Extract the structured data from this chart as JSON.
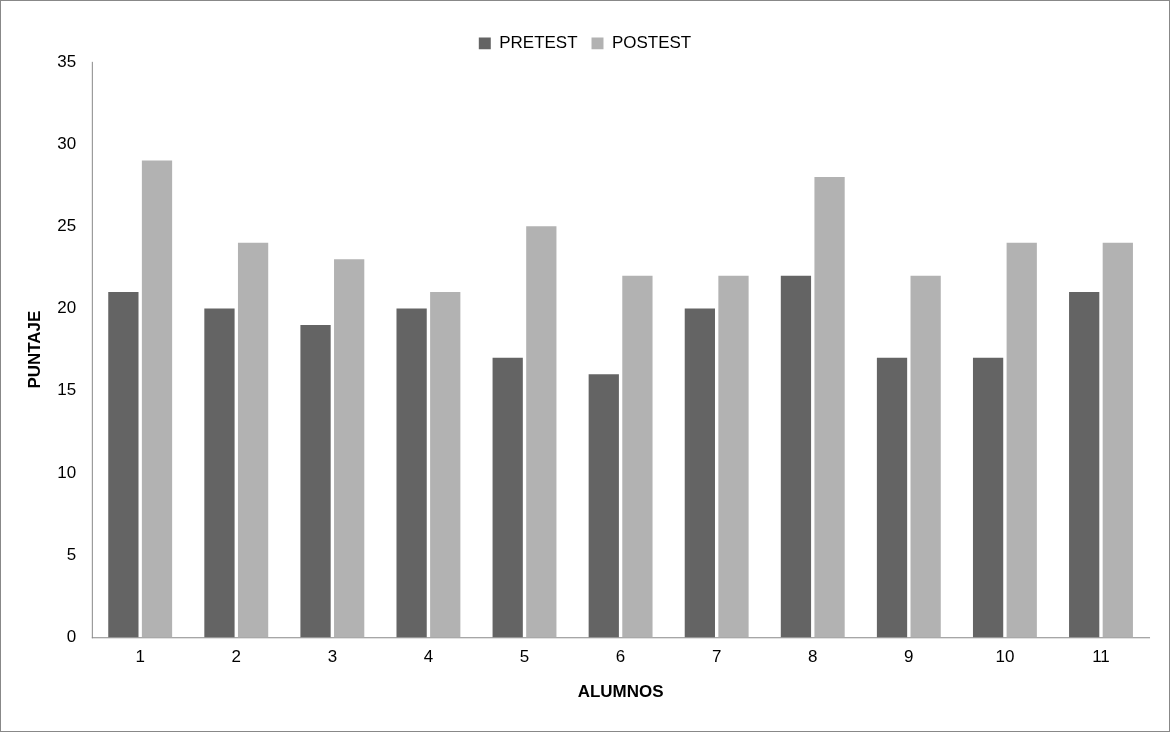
{
  "chart_data": {
    "type": "bar",
    "xlabel": "ALUMNOS",
    "ylabel": "PUNTAJE",
    "categories": [
      "1",
      "2",
      "3",
      "4",
      "5",
      "6",
      "7",
      "8",
      "9",
      "10",
      "11"
    ],
    "series": [
      {
        "name": "PRETEST",
        "color": "#646464",
        "values": [
          21,
          20,
          19,
          20,
          17,
          16,
          20,
          22,
          17,
          17,
          21
        ]
      },
      {
        "name": "POSTEST",
        "color": "#b2b2b2",
        "values": [
          29,
          24,
          23,
          21,
          25,
          22,
          22,
          28,
          22,
          24,
          24
        ]
      }
    ],
    "ylim": [
      0,
      35
    ],
    "yticks": [
      0,
      5,
      10,
      15,
      20,
      25,
      30,
      35
    ],
    "grid": false,
    "legend": "top"
  }
}
